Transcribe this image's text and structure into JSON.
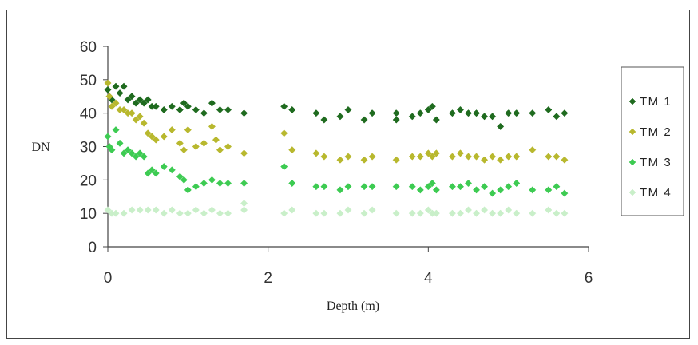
{
  "chart_data": {
    "type": "scatter",
    "title": "",
    "xlabel": "Depth (m)",
    "ylabel": "DN",
    "xlim": [
      0,
      6
    ],
    "ylim": [
      0,
      60
    ],
    "xticks": [
      "0",
      "2",
      "4",
      "6"
    ],
    "yticks": [
      "0",
      "10",
      "20",
      "30",
      "40",
      "50",
      "60"
    ],
    "grid": false,
    "legend_position": "right",
    "series": [
      {
        "name": "TM 1",
        "color": "#1f6b1f",
        "points": [
          [
            0.0,
            47
          ],
          [
            0.02,
            45
          ],
          [
            0.05,
            44
          ],
          [
            0.1,
            48
          ],
          [
            0.15,
            46
          ],
          [
            0.2,
            48
          ],
          [
            0.25,
            44
          ],
          [
            0.3,
            45
          ],
          [
            0.35,
            43
          ],
          [
            0.4,
            44
          ],
          [
            0.45,
            43
          ],
          [
            0.5,
            44
          ],
          [
            0.55,
            42
          ],
          [
            0.6,
            42
          ],
          [
            0.7,
            41
          ],
          [
            0.8,
            42
          ],
          [
            0.9,
            41
          ],
          [
            0.95,
            43
          ],
          [
            1.0,
            42
          ],
          [
            1.1,
            41
          ],
          [
            1.2,
            40
          ],
          [
            1.3,
            43
          ],
          [
            1.4,
            41
          ],
          [
            1.5,
            41
          ],
          [
            1.7,
            40
          ],
          [
            2.2,
            42
          ],
          [
            2.3,
            41
          ],
          [
            2.6,
            40
          ],
          [
            2.7,
            38
          ],
          [
            2.9,
            39
          ],
          [
            3.0,
            41
          ],
          [
            3.2,
            38
          ],
          [
            3.3,
            40
          ],
          [
            3.6,
            40
          ],
          [
            3.6,
            38
          ],
          [
            3.8,
            39
          ],
          [
            3.9,
            40
          ],
          [
            4.0,
            41
          ],
          [
            4.05,
            42
          ],
          [
            4.1,
            38
          ],
          [
            4.3,
            40
          ],
          [
            4.4,
            41
          ],
          [
            4.5,
            40
          ],
          [
            4.6,
            40
          ],
          [
            4.7,
            39
          ],
          [
            4.8,
            39
          ],
          [
            4.9,
            36
          ],
          [
            5.0,
            40
          ],
          [
            5.1,
            40
          ],
          [
            5.3,
            40
          ],
          [
            5.5,
            41
          ],
          [
            5.6,
            39
          ],
          [
            5.7,
            40
          ]
        ]
      },
      {
        "name": "TM 2",
        "color": "#b8b82e",
        "points": [
          [
            0.0,
            49
          ],
          [
            0.02,
            45
          ],
          [
            0.05,
            42
          ],
          [
            0.1,
            43
          ],
          [
            0.15,
            41
          ],
          [
            0.2,
            41
          ],
          [
            0.25,
            40
          ],
          [
            0.3,
            40
          ],
          [
            0.35,
            38
          ],
          [
            0.4,
            39
          ],
          [
            0.45,
            37
          ],
          [
            0.5,
            34
          ],
          [
            0.55,
            33
          ],
          [
            0.6,
            32
          ],
          [
            0.7,
            33
          ],
          [
            0.8,
            35
          ],
          [
            0.9,
            31
          ],
          [
            0.95,
            29
          ],
          [
            1.0,
            35
          ],
          [
            1.1,
            30
          ],
          [
            1.2,
            31
          ],
          [
            1.3,
            36
          ],
          [
            1.35,
            32
          ],
          [
            1.4,
            29
          ],
          [
            1.5,
            30
          ],
          [
            1.7,
            28
          ],
          [
            2.2,
            34
          ],
          [
            2.3,
            29
          ],
          [
            2.6,
            28
          ],
          [
            2.7,
            27
          ],
          [
            2.9,
            26
          ],
          [
            3.0,
            27
          ],
          [
            3.2,
            26
          ],
          [
            3.3,
            27
          ],
          [
            3.6,
            26
          ],
          [
            3.8,
            27
          ],
          [
            3.9,
            27
          ],
          [
            4.0,
            28
          ],
          [
            4.05,
            27
          ],
          [
            4.1,
            28
          ],
          [
            4.3,
            27
          ],
          [
            4.4,
            28
          ],
          [
            4.5,
            27
          ],
          [
            4.6,
            27
          ],
          [
            4.7,
            26
          ],
          [
            4.8,
            27
          ],
          [
            4.9,
            26
          ],
          [
            5.0,
            27
          ],
          [
            5.1,
            27
          ],
          [
            5.3,
            29
          ],
          [
            5.5,
            27
          ],
          [
            5.6,
            27
          ],
          [
            5.7,
            26
          ]
        ]
      },
      {
        "name": "TM 3",
        "color": "#3dcb52",
        "points": [
          [
            0.0,
            33
          ],
          [
            0.02,
            30
          ],
          [
            0.05,
            29
          ],
          [
            0.1,
            35
          ],
          [
            0.15,
            31
          ],
          [
            0.2,
            28
          ],
          [
            0.25,
            29
          ],
          [
            0.3,
            28
          ],
          [
            0.35,
            27
          ],
          [
            0.4,
            28
          ],
          [
            0.45,
            27
          ],
          [
            0.5,
            22
          ],
          [
            0.55,
            23
          ],
          [
            0.6,
            22
          ],
          [
            0.7,
            24
          ],
          [
            0.8,
            23
          ],
          [
            0.9,
            21
          ],
          [
            0.95,
            20
          ],
          [
            1.0,
            17
          ],
          [
            1.1,
            18
          ],
          [
            1.2,
            19
          ],
          [
            1.3,
            20
          ],
          [
            1.4,
            19
          ],
          [
            1.5,
            19
          ],
          [
            1.7,
            19
          ],
          [
            2.2,
            24
          ],
          [
            2.3,
            19
          ],
          [
            2.6,
            18
          ],
          [
            2.7,
            18
          ],
          [
            2.9,
            17
          ],
          [
            3.0,
            18
          ],
          [
            3.2,
            18
          ],
          [
            3.3,
            18
          ],
          [
            3.6,
            18
          ],
          [
            3.8,
            18
          ],
          [
            3.9,
            17
          ],
          [
            4.0,
            18
          ],
          [
            4.05,
            19
          ],
          [
            4.1,
            17
          ],
          [
            4.3,
            18
          ],
          [
            4.4,
            18
          ],
          [
            4.5,
            19
          ],
          [
            4.6,
            17
          ],
          [
            4.7,
            18
          ],
          [
            4.8,
            16
          ],
          [
            4.9,
            17
          ],
          [
            5.0,
            18
          ],
          [
            5.1,
            19
          ],
          [
            5.3,
            17
          ],
          [
            5.5,
            17
          ],
          [
            5.6,
            18
          ],
          [
            5.7,
            16
          ]
        ]
      },
      {
        "name": "TM 4",
        "color": "#c9efc9",
        "points": [
          [
            0.0,
            11
          ],
          [
            0.05,
            10
          ],
          [
            0.1,
            10
          ],
          [
            0.2,
            10
          ],
          [
            0.3,
            11
          ],
          [
            0.4,
            11
          ],
          [
            0.5,
            11
          ],
          [
            0.6,
            11
          ],
          [
            0.7,
            10
          ],
          [
            0.8,
            11
          ],
          [
            0.9,
            10
          ],
          [
            1.0,
            10
          ],
          [
            1.1,
            11
          ],
          [
            1.2,
            10
          ],
          [
            1.3,
            11
          ],
          [
            1.4,
            10
          ],
          [
            1.5,
            10
          ],
          [
            1.7,
            11
          ],
          [
            1.7,
            13
          ],
          [
            2.2,
            10
          ],
          [
            2.3,
            11
          ],
          [
            2.6,
            10
          ],
          [
            2.7,
            10
          ],
          [
            2.9,
            10
          ],
          [
            3.0,
            11
          ],
          [
            3.2,
            10
          ],
          [
            3.3,
            11
          ],
          [
            3.6,
            10
          ],
          [
            3.8,
            10
          ],
          [
            3.9,
            10
          ],
          [
            4.0,
            11
          ],
          [
            4.05,
            10
          ],
          [
            4.1,
            10
          ],
          [
            4.3,
            10
          ],
          [
            4.4,
            10
          ],
          [
            4.5,
            11
          ],
          [
            4.6,
            10
          ],
          [
            4.7,
            11
          ],
          [
            4.8,
            10
          ],
          [
            4.9,
            10
          ],
          [
            5.0,
            11
          ],
          [
            5.1,
            10
          ],
          [
            5.3,
            10
          ],
          [
            5.5,
            11
          ],
          [
            5.6,
            10
          ],
          [
            5.7,
            10
          ]
        ]
      }
    ]
  }
}
